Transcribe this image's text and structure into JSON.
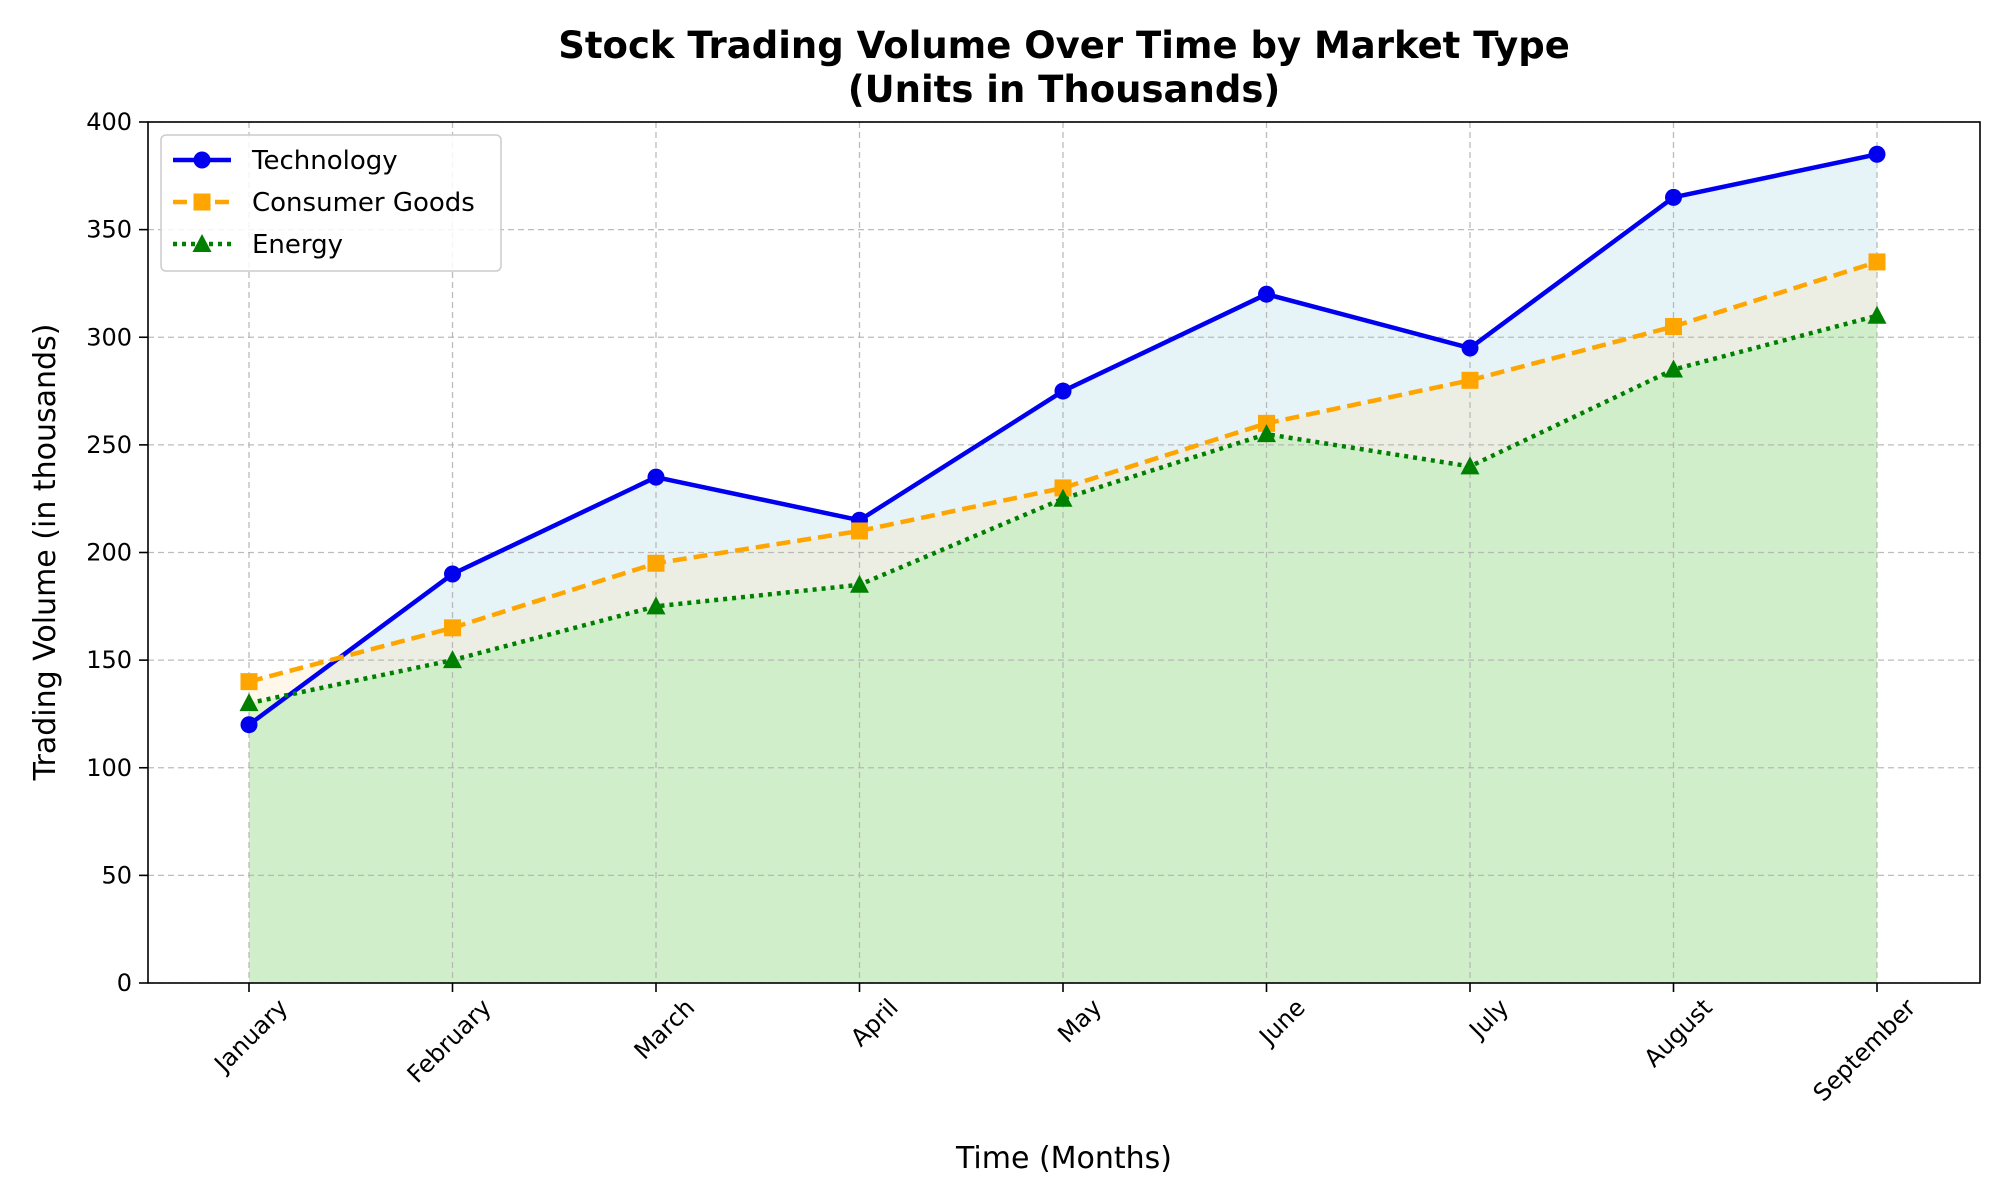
{
  "chart_data": {
    "type": "line",
    "title_lines": [
      "Stock Trading Volume Over Time by Market Type",
      "(Units in Thousands)"
    ],
    "xlabel": "Time (Months)",
    "ylabel": "Trading Volume (in thousands)",
    "categories": [
      "January",
      "February",
      "March",
      "April",
      "May",
      "June",
      "July",
      "August",
      "September"
    ],
    "ylim": [
      0,
      400
    ],
    "yticks": [
      0,
      50,
      100,
      150,
      200,
      250,
      300,
      350,
      400
    ],
    "grid": true,
    "legend_position": "top-left",
    "series": [
      {
        "name": "Technology",
        "values": [
          120,
          190,
          235,
          215,
          275,
          320,
          295,
          365,
          385
        ],
        "color": "#0000ee",
        "line_style": "solid",
        "marker": "circle",
        "fill_color": "#add8e6"
      },
      {
        "name": "Consumer Goods",
        "values": [
          140,
          165,
          195,
          210,
          230,
          260,
          280,
          305,
          335
        ],
        "color": "#ffa500",
        "line_style": "dashed",
        "marker": "square",
        "fill_color": "#ffe4b5"
      },
      {
        "name": "Energy",
        "values": [
          130,
          150,
          175,
          185,
          225,
          255,
          240,
          285,
          310
        ],
        "color": "#008000",
        "line_style": "dotted",
        "marker": "triangle",
        "fill_color": "#90ee90"
      }
    ]
  }
}
